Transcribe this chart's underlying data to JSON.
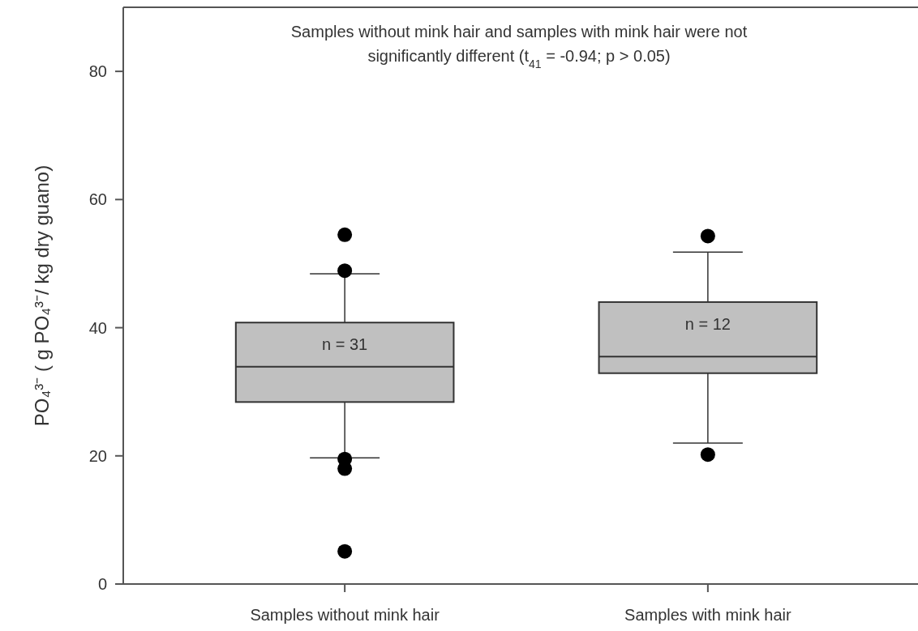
{
  "chart_data": {
    "type": "box",
    "title": "Samples without mink hair and samples with mink hair were not significantly different (t$_{41}$ = -0.94; p > 0.05)",
    "ylabel": "PO₄³⁻ ( g PO₄³⁻/ kg dry guano)",
    "categories": [
      "Samples without mink hair",
      "Samples with mink hair"
    ],
    "color": "#c0c0c0",
    "boxes": [
      {
        "low": 19.7,
        "q1": 28.4,
        "median": 33.9,
        "q3": 40.8,
        "high": 48.4,
        "outliers": [
          54.5,
          48.9,
          19.5,
          18.0,
          5.1
        ]
      },
      {
        "low": 22.0,
        "q1": 32.9,
        "median": 35.5,
        "q3": 44.0,
        "high": 51.8,
        "outliers": [
          54.3,
          20.2
        ]
      }
    ],
    "ylim": [
      0,
      90
    ],
    "yticks": [
      0,
      20,
      40,
      60,
      80
    ],
    "grid": false,
    "marker": "circle",
    "annotations": [
      "n = 31",
      "n = 12"
    ]
  }
}
